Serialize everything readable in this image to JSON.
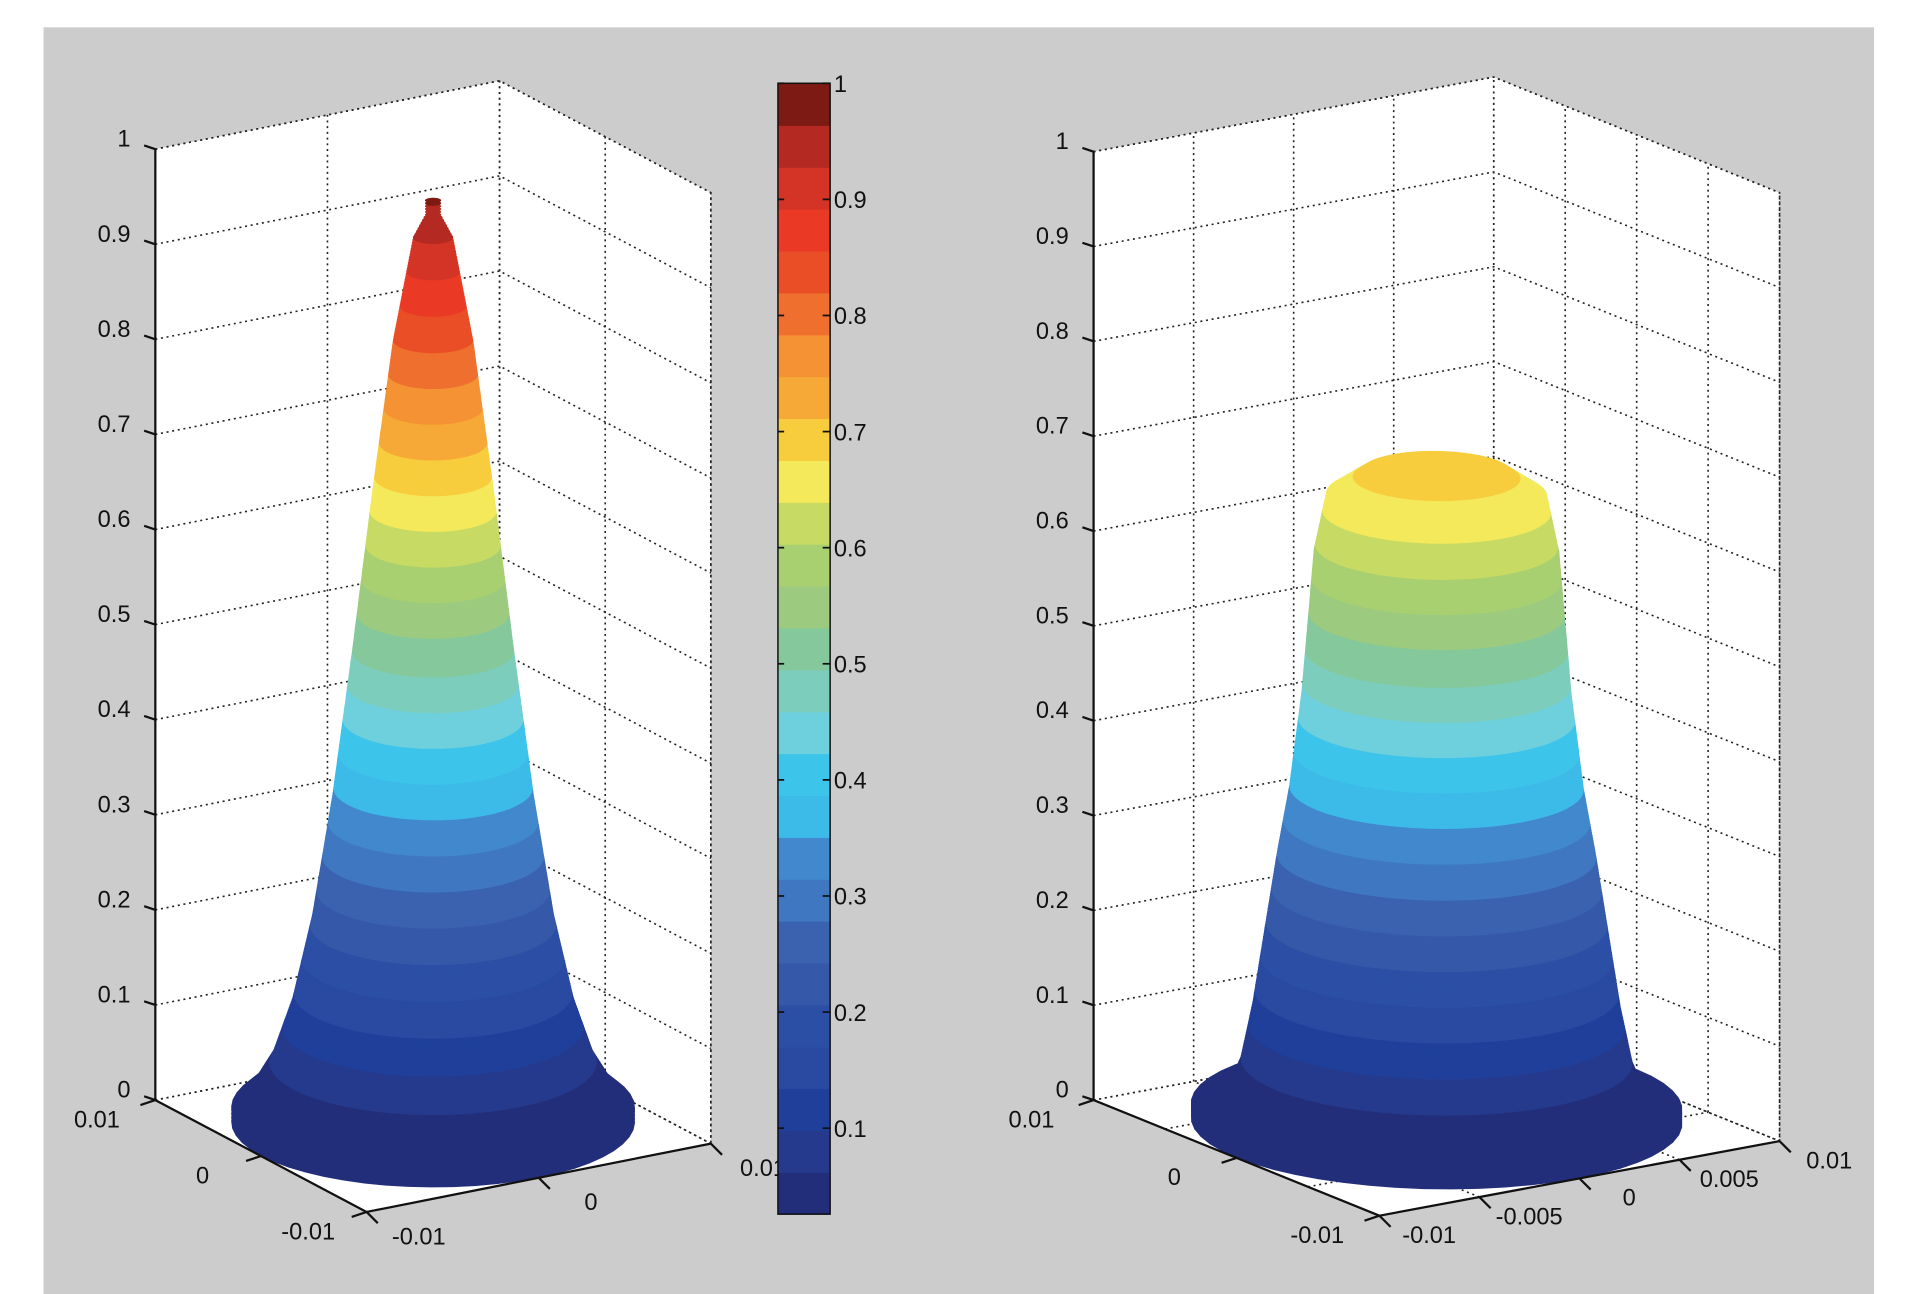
{
  "figure": {
    "background": "#cccccc",
    "axes_background": "#ffffff"
  },
  "chart_data": [
    {
      "type": "surface",
      "panel": "left",
      "title": "",
      "xlim": [
        -0.01,
        0.01
      ],
      "ylim": [
        -0.01,
        0.01
      ],
      "zlim": [
        0,
        1
      ],
      "grid": true,
      "xticks": [
        -0.01,
        0,
        0.01
      ],
      "xticklabels": [
        "-0.01",
        "0",
        "0.01"
      ],
      "yticks": [
        -0.01,
        0,
        0.01
      ],
      "yticklabels": [
        "-0.01",
        "0",
        "0.01"
      ],
      "grid_xy_step": 0.01,
      "zticks": [
        0,
        0.1,
        0.2,
        0.3,
        0.4,
        0.5,
        0.6,
        0.7,
        0.8,
        0.9,
        1
      ],
      "zticklabels": [
        "0",
        "0.1",
        "0.2",
        "0.3",
        "0.4",
        "0.5",
        "0.6",
        "0.7",
        "0.8",
        "0.9",
        "1"
      ],
      "shape": "radially symmetric peak",
      "profile": {
        "r": [
          0,
          0.001,
          0.002,
          0.003,
          0.004,
          0.005,
          0.006,
          0.007,
          0.008,
          0.009,
          0.01
        ],
        "z": [
          0.97,
          0.93,
          0.821,
          0.666,
          0.498,
          0.342,
          0.216,
          0.126,
          0.067,
          0.033,
          0.015
        ]
      }
    },
    {
      "type": "surface",
      "panel": "right",
      "title": "",
      "xlim": [
        -0.01,
        0.01
      ],
      "ylim": [
        -0.01,
        0.01
      ],
      "zlim": [
        0,
        1
      ],
      "grid": true,
      "xticks": [
        -0.01,
        -0.005,
        0,
        0.005,
        0.01
      ],
      "xticklabels": [
        "-0.01",
        "-0.005",
        "0",
        "0.005",
        "0.01"
      ],
      "yticks": [
        -0.01,
        0,
        0.01
      ],
      "yticklabels": [
        "-0.01",
        "0",
        "0.01"
      ],
      "grid_xy_step": 0.005,
      "zticks": [
        0,
        0.1,
        0.2,
        0.3,
        0.4,
        0.5,
        0.6,
        0.7,
        0.8,
        0.9,
        1
      ],
      "zticklabels": [
        "0",
        "0.1",
        "0.2",
        "0.3",
        "0.4",
        "0.5",
        "0.6",
        "0.7",
        "0.8",
        "0.9",
        "1"
      ],
      "shape": "flat-topped plateau",
      "profile": {
        "r": [
          0,
          0.003,
          0.0045,
          0.005,
          0.0055,
          0.006,
          0.0065,
          0.007,
          0.0075,
          0.008,
          0.0085,
          0.009,
          0.01
        ],
        "z": [
          0.69,
          0.685,
          0.66,
          0.6,
          0.45,
          0.35,
          0.28,
          0.2,
          0.12,
          0.06,
          0.03,
          0.02,
          0.015
        ]
      }
    },
    {
      "type": "colorbar",
      "range": [
        0.026,
        1
      ],
      "ticks": [
        0.1,
        0.2,
        0.3,
        0.4,
        0.5,
        0.6,
        0.7,
        0.8,
        0.9,
        1
      ],
      "ticklabels": [
        "0.1",
        "0.2",
        "0.3",
        "0.4",
        "0.5",
        "0.6",
        "0.7",
        "0.8",
        "0.9",
        "1"
      ],
      "colormap": "jet",
      "colors": [
        "#232e7a",
        "#253a8c",
        "#1f3f9a",
        "#2a4aa2",
        "#2c4fa6",
        "#3559a8",
        "#3a62ae",
        "#3f77c0",
        "#4188cc",
        "#3dbbe8",
        "#3cc4ea",
        "#6ecfdd",
        "#7ccdbb",
        "#85c89c",
        "#9ccb80",
        "#a8cf70",
        "#c7db64",
        "#f3e95a",
        "#f8cd3d",
        "#f6a936",
        "#f59233",
        "#ef6f2e",
        "#ea4e27",
        "#ea3a26",
        "#d43425",
        "#b42a22",
        "#7e1a14"
      ]
    }
  ]
}
